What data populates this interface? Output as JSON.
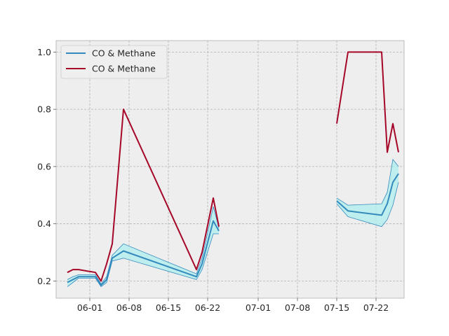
{
  "chart_data": {
    "type": "line",
    "title": "",
    "xlabel": "",
    "ylabel": "",
    "x_axis_type": "date",
    "xlim": [
      "2024-05-26",
      "2024-07-27"
    ],
    "ylim": [
      0.14,
      1.04
    ],
    "x_ticks": [
      {
        "date": "2024-06-01",
        "label": "06-01"
      },
      {
        "date": "2024-06-08",
        "label": "06-08"
      },
      {
        "date": "2024-06-15",
        "label": "06-15"
      },
      {
        "date": "2024-06-22",
        "label": "06-22"
      },
      {
        "date": "2024-07-01",
        "label": "07-01"
      },
      {
        "date": "2024-07-08",
        "label": "07-08"
      },
      {
        "date": "2024-07-15",
        "label": "07-15"
      },
      {
        "date": "2024-07-22",
        "label": "07-22"
      }
    ],
    "y_ticks": [
      {
        "value": 0.2,
        "label": "0.2"
      },
      {
        "value": 0.4,
        "label": "0.4"
      },
      {
        "value": 0.6,
        "label": "0.6"
      },
      {
        "value": 0.8,
        "label": "0.8"
      },
      {
        "value": 1.0,
        "label": "1.0"
      }
    ],
    "grid": true,
    "legend_position": "upper-left",
    "series": [
      {
        "name": "CO & Methane",
        "color": "#348ABD",
        "band_color": "#AFEEEE",
        "segments": [
          [
            {
              "x": "2024-05-28",
              "y": 0.195,
              "lo": 0.18,
              "hi": 0.205
            },
            {
              "x": "2024-05-29",
              "y": 0.205,
              "lo": 0.195,
              "hi": 0.215
            },
            {
              "x": "2024-05-30",
              "y": 0.215,
              "lo": 0.21,
              "hi": 0.222
            },
            {
              "x": "2024-06-02",
              "y": 0.215,
              "lo": 0.21,
              "hi": 0.222
            },
            {
              "x": "2024-06-03",
              "y": 0.185,
              "lo": 0.18,
              "hi": 0.19
            },
            {
              "x": "2024-06-04",
              "y": 0.205,
              "lo": 0.195,
              "hi": 0.215
            },
            {
              "x": "2024-06-05",
              "y": 0.28,
              "lo": 0.27,
              "hi": 0.29
            },
            {
              "x": "2024-06-07",
              "y": 0.305,
              "lo": 0.28,
              "hi": 0.33
            },
            {
              "x": "2024-06-20",
              "y": 0.215,
              "lo": 0.205,
              "hi": 0.225
            },
            {
              "x": "2024-06-21",
              "y": 0.26,
              "lo": 0.24,
              "hi": 0.28
            },
            {
              "x": "2024-06-23",
              "y": 0.41,
              "lo": 0.365,
              "hi": 0.46
            },
            {
              "x": "2024-06-24",
              "y": 0.375,
              "lo": 0.365,
              "hi": 0.385
            }
          ],
          [
            {
              "x": "2024-07-15",
              "y": 0.48,
              "lo": 0.47,
              "hi": 0.49
            },
            {
              "x": "2024-07-17",
              "y": 0.445,
              "lo": 0.425,
              "hi": 0.465
            },
            {
              "x": "2024-07-23",
              "y": 0.43,
              "lo": 0.39,
              "hi": 0.47
            },
            {
              "x": "2024-07-24",
              "y": 0.47,
              "lo": 0.415,
              "hi": 0.51
            },
            {
              "x": "2024-07-25",
              "y": 0.545,
              "lo": 0.465,
              "hi": 0.625
            },
            {
              "x": "2024-07-26",
              "y": 0.575,
              "lo": 0.545,
              "hi": 0.6
            }
          ]
        ]
      },
      {
        "name": "CO & Methane",
        "color": "#A60628",
        "segments": [
          [
            {
              "x": "2024-05-28",
              "y": 0.23
            },
            {
              "x": "2024-05-29",
              "y": 0.24
            },
            {
              "x": "2024-05-30",
              "y": 0.24
            },
            {
              "x": "2024-06-02",
              "y": 0.23
            },
            {
              "x": "2024-06-03",
              "y": 0.2
            },
            {
              "x": "2024-06-04",
              "y": 0.26
            },
            {
              "x": "2024-06-05",
              "y": 0.33
            },
            {
              "x": "2024-06-07",
              "y": 0.8
            },
            {
              "x": "2024-06-20",
              "y": 0.24
            },
            {
              "x": "2024-06-21",
              "y": 0.3
            },
            {
              "x": "2024-06-23",
              "y": 0.49
            },
            {
              "x": "2024-06-24",
              "y": 0.39
            }
          ],
          [
            {
              "x": "2024-07-15",
              "y": 0.75
            },
            {
              "x": "2024-07-17",
              "y": 1.0
            },
            {
              "x": "2024-07-23",
              "y": 1.0
            },
            {
              "x": "2024-07-24",
              "y": 0.65
            },
            {
              "x": "2024-07-25",
              "y": 0.75
            },
            {
              "x": "2024-07-26",
              "y": 0.65
            }
          ]
        ]
      }
    ]
  }
}
